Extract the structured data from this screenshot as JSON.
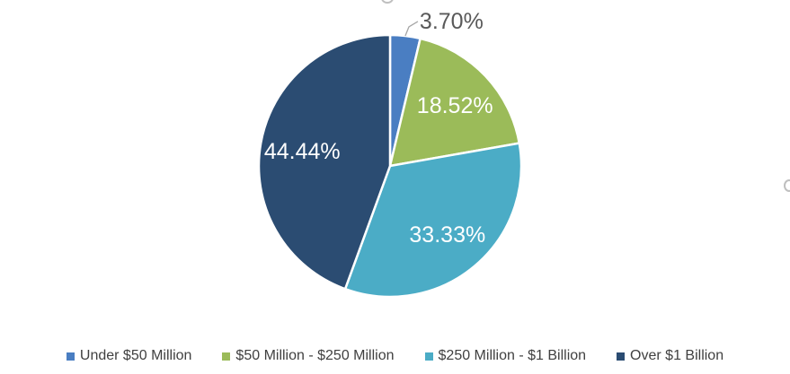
{
  "chart_data": {
    "type": "pie",
    "title": "",
    "categories": [
      "Under $50 Million",
      "$50 Million - $250 Million",
      "$250 Million - $1 Billion",
      "Over $1 Billion"
    ],
    "values": [
      3.7,
      18.52,
      33.33,
      44.44
    ],
    "data_labels": [
      "3.70%",
      "18.52%",
      "33.33%",
      "44.44%"
    ],
    "colors": [
      "#4a7ec2",
      "#9bbb59",
      "#4bacc6",
      "#2b4c72"
    ],
    "start_angle": "12 o'clock",
    "direction": "clockwise",
    "legend_position": "bottom"
  }
}
